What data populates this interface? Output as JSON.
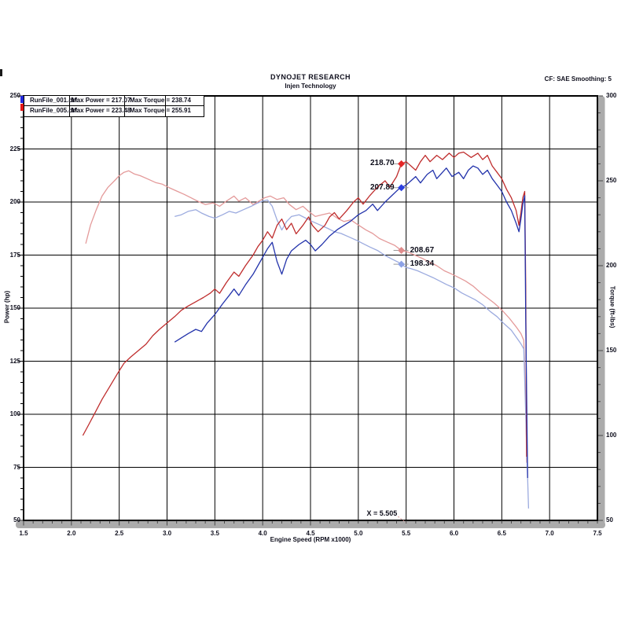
{
  "header": {
    "title": "DYNOJET RESEARCH",
    "subtitle": "Injen Technology",
    "correction": "CF: SAE  Smoothing: 5"
  },
  "legend": {
    "rows": [
      {
        "file": "RunFile_001.drf",
        "max_power": "Max Power = 217.07",
        "max_torque": "Max Torque = 238.74",
        "color": "#2228dc"
      },
      {
        "file": "RunFile_005.drf",
        "max_power": "Max Power = 223.48",
        "max_torque": "Max Torque = 255.91",
        "color": "#e31616"
      }
    ]
  },
  "cursor": {
    "text": "X = 5.505",
    "value": 5.505
  },
  "callouts": [
    {
      "text": "218.70",
      "series": "power_005",
      "label_side": "left",
      "marker_color": "#e42727"
    },
    {
      "text": "207.89",
      "series": "power_001",
      "label_side": "left",
      "marker_color": "#2c3fe0"
    },
    {
      "text": "208.67",
      "series": "torque_005",
      "label_side": "right",
      "marker_color": "#e08d8d"
    },
    {
      "text": "198.34",
      "series": "torque_001",
      "label_side": "right",
      "marker_color": "#8da2e6"
    }
  ],
  "chart_data": {
    "type": "line",
    "title": "DYNOJET RESEARCH",
    "subtitle": "Injen Technology",
    "xlabel": "Engine Speed (RPM x1000)",
    "ylabel_left": "Power (hp)",
    "ylabel_right": "Torque (ft-lbs)",
    "grid": true,
    "x_axis": {
      "min": 1.5,
      "max": 7.5,
      "ticks": [
        1.5,
        2.0,
        2.5,
        3.0,
        3.5,
        4.0,
        4.5,
        5.0,
        5.5,
        6.0,
        6.5,
        7.0,
        7.5
      ],
      "minor_step": 0.1
    },
    "y_left": {
      "min": 50,
      "max": 250,
      "ticks": [
        250,
        225,
        200,
        175,
        150,
        125,
        100,
        75,
        50
      ],
      "minor_step": 5
    },
    "y_right": {
      "min": 50,
      "max": 300,
      "ticks": [
        300,
        250,
        200,
        150,
        100,
        50
      ],
      "minor_step": 10
    },
    "series": [
      {
        "id": "torque_005",
        "name": "RunFile_005.drf Torque",
        "axis": "right",
        "color": "#e49a9a",
        "points": [
          [
            2.15,
            213
          ],
          [
            2.2,
            224
          ],
          [
            2.26,
            233
          ],
          [
            2.32,
            241
          ],
          [
            2.38,
            246
          ],
          [
            2.45,
            250
          ],
          [
            2.5,
            253
          ],
          [
            2.55,
            255
          ],
          [
            2.6,
            255.9
          ],
          [
            2.66,
            254
          ],
          [
            2.72,
            253
          ],
          [
            2.8,
            251
          ],
          [
            2.88,
            249
          ],
          [
            2.95,
            248
          ],
          [
            3.02,
            246
          ],
          [
            3.1,
            244
          ],
          [
            3.18,
            242
          ],
          [
            3.25,
            240
          ],
          [
            3.32,
            238
          ],
          [
            3.4,
            236
          ],
          [
            3.48,
            237
          ],
          [
            3.55,
            235
          ],
          [
            3.62,
            238
          ],
          [
            3.7,
            241
          ],
          [
            3.75,
            238
          ],
          [
            3.82,
            240
          ],
          [
            3.9,
            236
          ],
          [
            3.96,
            238
          ],
          [
            4.02,
            240
          ],
          [
            4.08,
            241
          ],
          [
            4.15,
            239
          ],
          [
            4.22,
            240
          ],
          [
            4.28,
            236
          ],
          [
            4.35,
            233
          ],
          [
            4.42,
            235
          ],
          [
            4.48,
            232
          ],
          [
            4.55,
            229
          ],
          [
            4.62,
            230
          ],
          [
            4.7,
            231
          ],
          [
            4.78,
            228
          ],
          [
            4.85,
            226
          ],
          [
            4.92,
            227
          ],
          [
            5.0,
            224
          ],
          [
            5.08,
            221
          ],
          [
            5.15,
            219
          ],
          [
            5.22,
            216
          ],
          [
            5.3,
            214
          ],
          [
            5.38,
            212
          ],
          [
            5.45,
            209
          ],
          [
            5.52,
            208
          ],
          [
            5.6,
            206
          ],
          [
            5.68,
            204
          ],
          [
            5.75,
            202
          ],
          [
            5.82,
            200
          ],
          [
            5.9,
            197
          ],
          [
            5.98,
            195
          ],
          [
            6.05,
            193
          ],
          [
            6.12,
            191
          ],
          [
            6.2,
            188
          ],
          [
            6.28,
            184
          ],
          [
            6.35,
            181
          ],
          [
            6.42,
            178
          ],
          [
            6.5,
            174
          ],
          [
            6.58,
            169
          ],
          [
            6.65,
            164
          ],
          [
            6.7,
            160
          ],
          [
            6.73,
            156
          ],
          [
            6.75,
            120
          ],
          [
            6.76,
            84
          ]
        ]
      },
      {
        "id": "torque_001",
        "name": "RunFile_001.drf Torque",
        "axis": "right",
        "color": "#9cabdf",
        "points": [
          [
            3.08,
            229
          ],
          [
            3.15,
            230
          ],
          [
            3.22,
            232
          ],
          [
            3.3,
            233
          ],
          [
            3.36,
            231
          ],
          [
            3.44,
            229
          ],
          [
            3.5,
            228
          ],
          [
            3.58,
            230
          ],
          [
            3.65,
            232
          ],
          [
            3.72,
            231
          ],
          [
            3.8,
            233
          ],
          [
            3.88,
            235
          ],
          [
            3.95,
            237
          ],
          [
            4.0,
            238
          ],
          [
            4.05,
            238.7
          ],
          [
            4.1,
            235
          ],
          [
            4.15,
            227
          ],
          [
            4.2,
            221
          ],
          [
            4.25,
            226
          ],
          [
            4.3,
            229
          ],
          [
            4.38,
            230
          ],
          [
            4.45,
            228
          ],
          [
            4.52,
            226
          ],
          [
            4.6,
            224
          ],
          [
            4.68,
            222
          ],
          [
            4.75,
            220
          ],
          [
            4.82,
            219
          ],
          [
            4.9,
            217
          ],
          [
            4.98,
            215
          ],
          [
            5.05,
            213
          ],
          [
            5.12,
            211
          ],
          [
            5.2,
            209
          ],
          [
            5.28,
            206
          ],
          [
            5.35,
            204
          ],
          [
            5.42,
            202
          ],
          [
            5.5,
            199
          ],
          [
            5.55,
            198.3
          ],
          [
            5.62,
            197
          ],
          [
            5.7,
            195
          ],
          [
            5.78,
            193
          ],
          [
            5.85,
            191
          ],
          [
            5.92,
            189
          ],
          [
            6.0,
            187
          ],
          [
            6.08,
            184
          ],
          [
            6.15,
            182
          ],
          [
            6.22,
            180
          ],
          [
            6.3,
            177
          ],
          [
            6.38,
            173
          ],
          [
            6.45,
            170
          ],
          [
            6.52,
            166
          ],
          [
            6.6,
            162
          ],
          [
            6.65,
            158
          ],
          [
            6.7,
            154
          ],
          [
            6.73,
            151
          ],
          [
            6.75,
            112
          ],
          [
            6.78,
            57
          ]
        ]
      },
      {
        "id": "power_005",
        "name": "RunFile_005.drf Power",
        "axis": "left",
        "color": "#bf2d2d",
        "points": [
          [
            2.12,
            90
          ],
          [
            2.18,
            95
          ],
          [
            2.25,
            101
          ],
          [
            2.32,
            107
          ],
          [
            2.4,
            113
          ],
          [
            2.48,
            119
          ],
          [
            2.55,
            124
          ],
          [
            2.62,
            127
          ],
          [
            2.7,
            130
          ],
          [
            2.78,
            133
          ],
          [
            2.85,
            137
          ],
          [
            2.92,
            140
          ],
          [
            3.0,
            143
          ],
          [
            3.08,
            146
          ],
          [
            3.15,
            149
          ],
          [
            3.22,
            151
          ],
          [
            3.3,
            153
          ],
          [
            3.38,
            155
          ],
          [
            3.45,
            157
          ],
          [
            3.5,
            159
          ],
          [
            3.55,
            157
          ],
          [
            3.62,
            162
          ],
          [
            3.7,
            167
          ],
          [
            3.75,
            165
          ],
          [
            3.82,
            170
          ],
          [
            3.9,
            175
          ],
          [
            3.95,
            179
          ],
          [
            4.0,
            182
          ],
          [
            4.05,
            186
          ],
          [
            4.1,
            183
          ],
          [
            4.15,
            189
          ],
          [
            4.2,
            192
          ],
          [
            4.25,
            187
          ],
          [
            4.3,
            190
          ],
          [
            4.35,
            185
          ],
          [
            4.42,
            189
          ],
          [
            4.48,
            193
          ],
          [
            4.52,
            189
          ],
          [
            4.58,
            186
          ],
          [
            4.65,
            189
          ],
          [
            4.7,
            193
          ],
          [
            4.75,
            195
          ],
          [
            4.8,
            192
          ],
          [
            4.88,
            196
          ],
          [
            4.95,
            200
          ],
          [
            5.0,
            202
          ],
          [
            5.05,
            199
          ],
          [
            5.12,
            203
          ],
          [
            5.2,
            207
          ],
          [
            5.28,
            210
          ],
          [
            5.33,
            207
          ],
          [
            5.4,
            212
          ],
          [
            5.45,
            218
          ],
          [
            5.5,
            219
          ],
          [
            5.55,
            217
          ],
          [
            5.6,
            215
          ],
          [
            5.65,
            219
          ],
          [
            5.7,
            222
          ],
          [
            5.75,
            219
          ],
          [
            5.82,
            222
          ],
          [
            5.88,
            220
          ],
          [
            5.95,
            223
          ],
          [
            6.0,
            221
          ],
          [
            6.05,
            223
          ],
          [
            6.1,
            223.5
          ],
          [
            6.18,
            221
          ],
          [
            6.25,
            223
          ],
          [
            6.3,
            220
          ],
          [
            6.35,
            222
          ],
          [
            6.4,
            217
          ],
          [
            6.45,
            214
          ],
          [
            6.5,
            211
          ],
          [
            6.55,
            206
          ],
          [
            6.6,
            202
          ],
          [
            6.65,
            196
          ],
          [
            6.68,
            189
          ],
          [
            6.7,
            195
          ],
          [
            6.72,
            202
          ],
          [
            6.74,
            205
          ],
          [
            6.75,
            160
          ],
          [
            6.76,
            80
          ]
        ]
      },
      {
        "id": "power_001",
        "name": "RunFile_001.drf Power",
        "axis": "left",
        "color": "#2333ab",
        "points": [
          [
            3.08,
            134
          ],
          [
            3.15,
            136
          ],
          [
            3.22,
            138
          ],
          [
            3.3,
            140
          ],
          [
            3.36,
            139
          ],
          [
            3.42,
            143
          ],
          [
            3.5,
            147
          ],
          [
            3.58,
            152
          ],
          [
            3.65,
            156
          ],
          [
            3.7,
            159
          ],
          [
            3.75,
            156
          ],
          [
            3.82,
            161
          ],
          [
            3.9,
            166
          ],
          [
            3.95,
            170
          ],
          [
            4.0,
            174
          ],
          [
            4.05,
            178
          ],
          [
            4.1,
            181
          ],
          [
            4.15,
            172
          ],
          [
            4.2,
            166
          ],
          [
            4.25,
            173
          ],
          [
            4.3,
            177
          ],
          [
            4.38,
            180
          ],
          [
            4.45,
            182
          ],
          [
            4.5,
            180
          ],
          [
            4.55,
            177
          ],
          [
            4.62,
            180
          ],
          [
            4.7,
            184
          ],
          [
            4.78,
            187
          ],
          [
            4.85,
            189
          ],
          [
            4.92,
            191
          ],
          [
            5.0,
            194
          ],
          [
            5.08,
            196
          ],
          [
            5.15,
            199
          ],
          [
            5.2,
            196
          ],
          [
            5.28,
            200
          ],
          [
            5.35,
            203
          ],
          [
            5.42,
            206
          ],
          [
            5.5,
            208
          ],
          [
            5.55,
            210
          ],
          [
            5.6,
            212
          ],
          [
            5.65,
            209
          ],
          [
            5.72,
            213
          ],
          [
            5.78,
            215
          ],
          [
            5.82,
            211
          ],
          [
            5.88,
            214
          ],
          [
            5.92,
            216
          ],
          [
            5.98,
            212
          ],
          [
            6.05,
            214
          ],
          [
            6.1,
            211
          ],
          [
            6.15,
            215
          ],
          [
            6.2,
            217
          ],
          [
            6.25,
            216
          ],
          [
            6.3,
            213
          ],
          [
            6.35,
            215
          ],
          [
            6.4,
            211
          ],
          [
            6.45,
            208
          ],
          [
            6.5,
            205
          ],
          [
            6.55,
            200
          ],
          [
            6.6,
            196
          ],
          [
            6.65,
            190
          ],
          [
            6.68,
            186
          ],
          [
            6.7,
            192
          ],
          [
            6.72,
            199
          ],
          [
            6.74,
            203
          ],
          [
            6.75,
            145
          ],
          [
            6.77,
            70
          ]
        ]
      }
    ]
  }
}
